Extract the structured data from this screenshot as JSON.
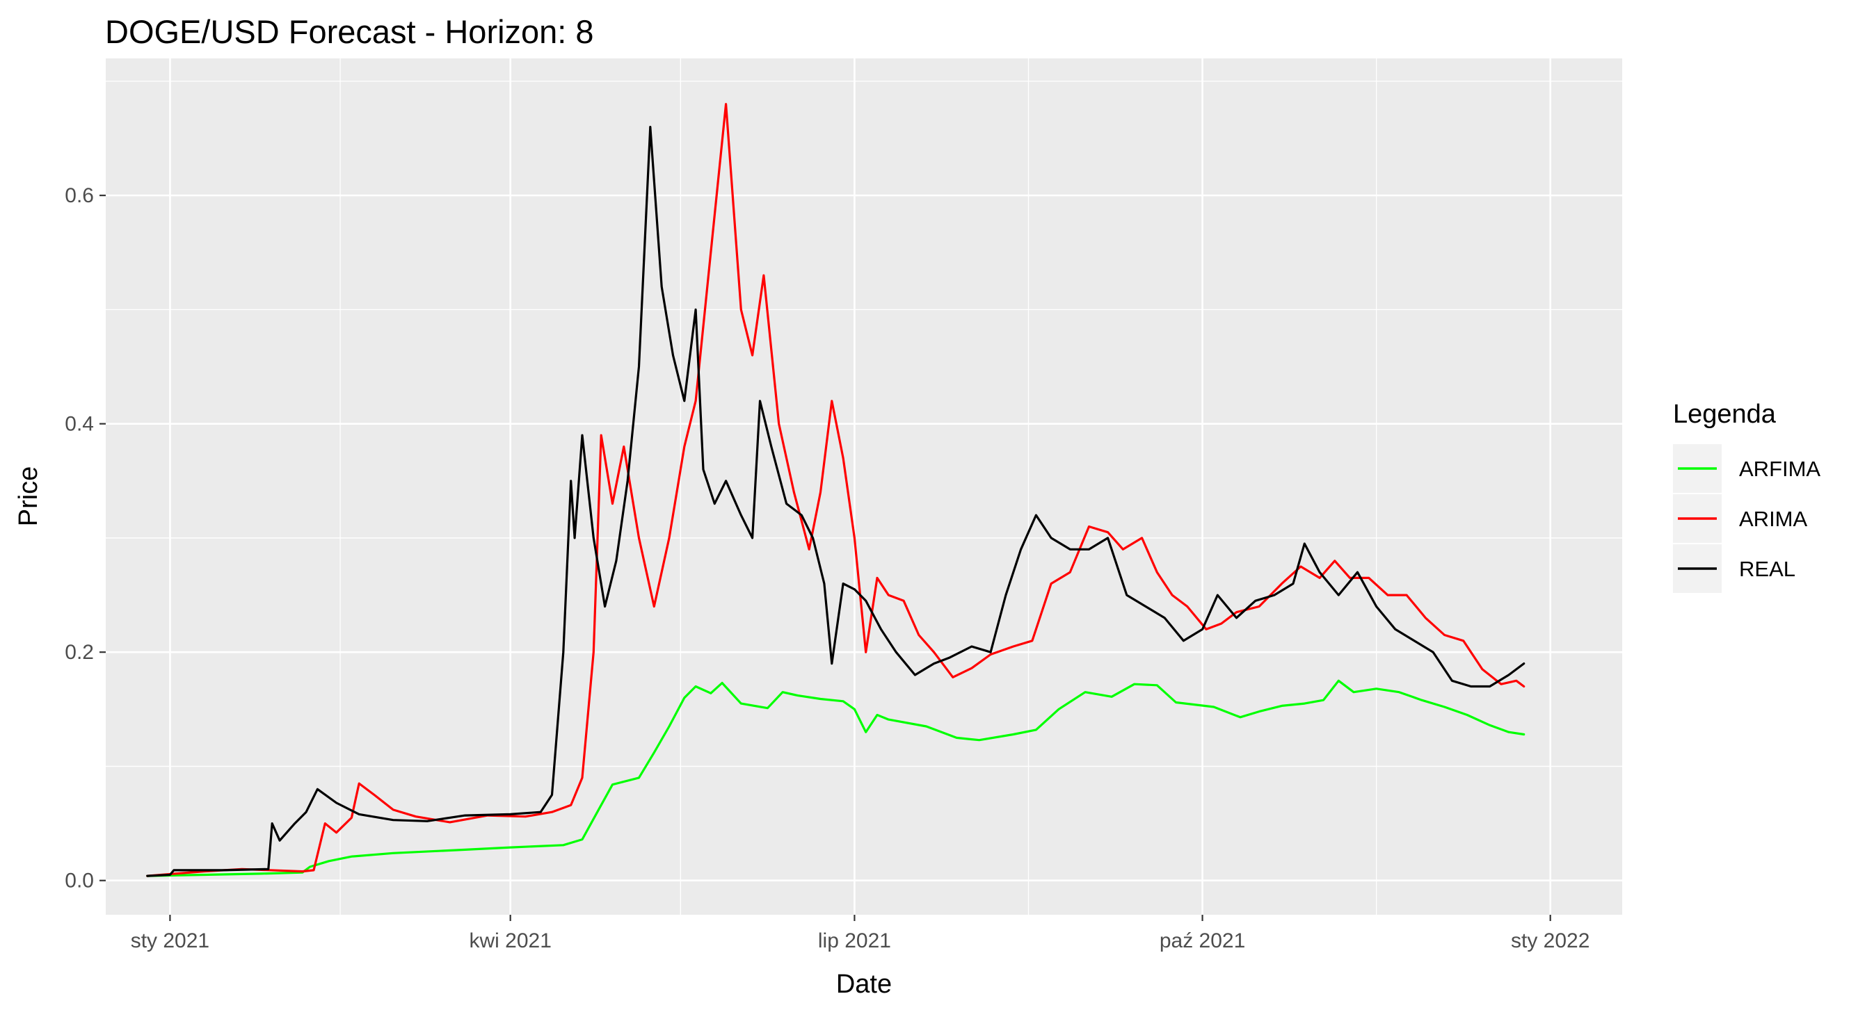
{
  "chart_data": {
    "type": "line",
    "title": "DOGE/USD Forecast - Horizon: 8",
    "xlabel": "Date",
    "ylabel": "Price",
    "xlim": [
      "2020-12-15",
      "2022-01-20"
    ],
    "ylim": [
      -0.03,
      0.72
    ],
    "x_ticks": [
      {
        "date": "2021-01-01",
        "label": "sty 2021"
      },
      {
        "date": "2021-04-01",
        "label": "kwi 2021"
      },
      {
        "date": "2021-07-01",
        "label": "lip 2021"
      },
      {
        "date": "2021-10-01",
        "label": "paź 2021"
      },
      {
        "date": "2022-01-01",
        "label": "sty 2022"
      }
    ],
    "x_minor_ticks": [
      "2021-02-15",
      "2021-05-16",
      "2021-08-16",
      "2021-11-16"
    ],
    "y_ticks": [
      {
        "value": 0.0,
        "label": "0.0"
      },
      {
        "value": 0.2,
        "label": "0.2"
      },
      {
        "value": 0.4,
        "label": "0.4"
      },
      {
        "value": 0.6,
        "label": "0.6"
      }
    ],
    "y_minor_ticks": [
      0.1,
      0.3,
      0.5,
      0.7
    ],
    "grid": true,
    "legend": {
      "title": "Legenda",
      "position": "right"
    },
    "series": [
      {
        "name": "ARFIMA",
        "color": "#00ff00",
        "points": [
          [
            "2020-12-26",
            0.004
          ],
          [
            "2021-01-10",
            0.005
          ],
          [
            "2021-01-25",
            0.006
          ],
          [
            "2021-02-05",
            0.007
          ],
          [
            "2021-02-07",
            0.012
          ],
          [
            "2021-02-12",
            0.017
          ],
          [
            "2021-02-18",
            0.021
          ],
          [
            "2021-03-01",
            0.024
          ],
          [
            "2021-03-20",
            0.027
          ],
          [
            "2021-04-01",
            0.029
          ],
          [
            "2021-04-15",
            0.031
          ],
          [
            "2021-04-20",
            0.036
          ],
          [
            "2021-04-24",
            0.06
          ],
          [
            "2021-04-28",
            0.084
          ],
          [
            "2021-05-05",
            0.09
          ],
          [
            "2021-05-09",
            0.112
          ],
          [
            "2021-05-13",
            0.135
          ],
          [
            "2021-05-17",
            0.16
          ],
          [
            "2021-05-20",
            0.17
          ],
          [
            "2021-05-24",
            0.164
          ],
          [
            "2021-05-27",
            0.173
          ],
          [
            "2021-06-01",
            0.155
          ],
          [
            "2021-06-08",
            0.151
          ],
          [
            "2021-06-12",
            0.165
          ],
          [
            "2021-06-16",
            0.162
          ],
          [
            "2021-06-22",
            0.159
          ],
          [
            "2021-06-28",
            0.157
          ],
          [
            "2021-07-01",
            0.15
          ],
          [
            "2021-07-04",
            0.13
          ],
          [
            "2021-07-07",
            0.145
          ],
          [
            "2021-07-10",
            0.141
          ],
          [
            "2021-07-20",
            0.135
          ],
          [
            "2021-07-28",
            0.125
          ],
          [
            "2021-08-03",
            0.123
          ],
          [
            "2021-08-12",
            0.128
          ],
          [
            "2021-08-18",
            0.132
          ],
          [
            "2021-08-24",
            0.15
          ],
          [
            "2021-08-31",
            0.165
          ],
          [
            "2021-09-07",
            0.161
          ],
          [
            "2021-09-13",
            0.172
          ],
          [
            "2021-09-19",
            0.171
          ],
          [
            "2021-09-24",
            0.156
          ],
          [
            "2021-10-04",
            0.152
          ],
          [
            "2021-10-11",
            0.143
          ],
          [
            "2021-10-16",
            0.148
          ],
          [
            "2021-10-22",
            0.153
          ],
          [
            "2021-10-28",
            0.155
          ],
          [
            "2021-11-02",
            0.158
          ],
          [
            "2021-11-06",
            0.175
          ],
          [
            "2021-11-10",
            0.165
          ],
          [
            "2021-11-16",
            0.168
          ],
          [
            "2021-11-22",
            0.165
          ],
          [
            "2021-11-28",
            0.158
          ],
          [
            "2021-12-04",
            0.152
          ],
          [
            "2021-12-10",
            0.145
          ],
          [
            "2021-12-16",
            0.136
          ],
          [
            "2021-12-21",
            0.13
          ],
          [
            "2021-12-25",
            0.128
          ]
        ]
      },
      {
        "name": "ARIMA",
        "color": "#ff0000",
        "points": [
          [
            "2020-12-26",
            0.004
          ],
          [
            "2021-01-10",
            0.008
          ],
          [
            "2021-01-20",
            0.01
          ],
          [
            "2021-02-05",
            0.008
          ],
          [
            "2021-02-08",
            0.009
          ],
          [
            "2021-02-11",
            0.05
          ],
          [
            "2021-02-14",
            0.042
          ],
          [
            "2021-02-18",
            0.055
          ],
          [
            "2021-02-20",
            0.085
          ],
          [
            "2021-02-24",
            0.075
          ],
          [
            "2021-03-01",
            0.062
          ],
          [
            "2021-03-07",
            0.056
          ],
          [
            "2021-03-16",
            0.051
          ],
          [
            "2021-03-26",
            0.057
          ],
          [
            "2021-04-05",
            0.056
          ],
          [
            "2021-04-12",
            0.06
          ],
          [
            "2021-04-17",
            0.066
          ],
          [
            "2021-04-20",
            0.09
          ],
          [
            "2021-04-23",
            0.2
          ],
          [
            "2021-04-25",
            0.39
          ],
          [
            "2021-04-28",
            0.33
          ],
          [
            "2021-05-01",
            0.38
          ],
          [
            "2021-05-05",
            0.3
          ],
          [
            "2021-05-09",
            0.24
          ],
          [
            "2021-05-13",
            0.3
          ],
          [
            "2021-05-17",
            0.38
          ],
          [
            "2021-05-20",
            0.42
          ],
          [
            "2021-05-24",
            0.55
          ],
          [
            "2021-05-28",
            0.68
          ],
          [
            "2021-06-01",
            0.5
          ],
          [
            "2021-06-04",
            0.46
          ],
          [
            "2021-06-07",
            0.53
          ],
          [
            "2021-06-11",
            0.4
          ],
          [
            "2021-06-15",
            0.34
          ],
          [
            "2021-06-19",
            0.29
          ],
          [
            "2021-06-22",
            0.34
          ],
          [
            "2021-06-25",
            0.42
          ],
          [
            "2021-06-28",
            0.37
          ],
          [
            "2021-07-01",
            0.3
          ],
          [
            "2021-07-04",
            0.2
          ],
          [
            "2021-07-07",
            0.265
          ],
          [
            "2021-07-10",
            0.25
          ],
          [
            "2021-07-14",
            0.245
          ],
          [
            "2021-07-18",
            0.215
          ],
          [
            "2021-07-22",
            0.2
          ],
          [
            "2021-07-27",
            0.178
          ],
          [
            "2021-08-01",
            0.186
          ],
          [
            "2021-08-06",
            0.198
          ],
          [
            "2021-08-12",
            0.205
          ],
          [
            "2021-08-17",
            0.21
          ],
          [
            "2021-08-22",
            0.26
          ],
          [
            "2021-08-27",
            0.27
          ],
          [
            "2021-09-01",
            0.31
          ],
          [
            "2021-09-06",
            0.305
          ],
          [
            "2021-09-10",
            0.29
          ],
          [
            "2021-09-15",
            0.3
          ],
          [
            "2021-09-19",
            0.27
          ],
          [
            "2021-09-23",
            0.25
          ],
          [
            "2021-09-27",
            0.24
          ],
          [
            "2021-10-02",
            0.22
          ],
          [
            "2021-10-06",
            0.225
          ],
          [
            "2021-10-10",
            0.235
          ],
          [
            "2021-10-16",
            0.24
          ],
          [
            "2021-10-22",
            0.26
          ],
          [
            "2021-10-27",
            0.275
          ],
          [
            "2021-11-01",
            0.265
          ],
          [
            "2021-11-05",
            0.28
          ],
          [
            "2021-11-09",
            0.265
          ],
          [
            "2021-11-14",
            0.265
          ],
          [
            "2021-11-19",
            0.25
          ],
          [
            "2021-11-24",
            0.25
          ],
          [
            "2021-11-29",
            0.23
          ],
          [
            "2021-12-04",
            0.215
          ],
          [
            "2021-12-09",
            0.21
          ],
          [
            "2021-12-14",
            0.185
          ],
          [
            "2021-12-19",
            0.172
          ],
          [
            "2021-12-23",
            0.175
          ],
          [
            "2021-12-25",
            0.17
          ]
        ]
      },
      {
        "name": "REAL",
        "color": "#000000",
        "points": [
          [
            "2020-12-26",
            0.004
          ],
          [
            "2021-01-01",
            0.005
          ],
          [
            "2021-01-02",
            0.009
          ],
          [
            "2021-01-15",
            0.009
          ],
          [
            "2021-01-27",
            0.01
          ],
          [
            "2021-01-28",
            0.05
          ],
          [
            "2021-01-30",
            0.035
          ],
          [
            "2021-02-03",
            0.05
          ],
          [
            "2021-02-06",
            0.06
          ],
          [
            "2021-02-09",
            0.08
          ],
          [
            "2021-02-14",
            0.068
          ],
          [
            "2021-02-20",
            0.058
          ],
          [
            "2021-03-01",
            0.053
          ],
          [
            "2021-03-10",
            0.052
          ],
          [
            "2021-03-20",
            0.057
          ],
          [
            "2021-04-01",
            0.058
          ],
          [
            "2021-04-09",
            0.06
          ],
          [
            "2021-04-12",
            0.075
          ],
          [
            "2021-04-15",
            0.2
          ],
          [
            "2021-04-17",
            0.35
          ],
          [
            "2021-04-18",
            0.3
          ],
          [
            "2021-04-20",
            0.39
          ],
          [
            "2021-04-23",
            0.3
          ],
          [
            "2021-04-26",
            0.24
          ],
          [
            "2021-04-29",
            0.28
          ],
          [
            "2021-05-02",
            0.35
          ],
          [
            "2021-05-05",
            0.45
          ],
          [
            "2021-05-08",
            0.66
          ],
          [
            "2021-05-11",
            0.52
          ],
          [
            "2021-05-14",
            0.46
          ],
          [
            "2021-05-17",
            0.42
          ],
          [
            "2021-05-20",
            0.5
          ],
          [
            "2021-05-22",
            0.36
          ],
          [
            "2021-05-25",
            0.33
          ],
          [
            "2021-05-28",
            0.35
          ],
          [
            "2021-06-01",
            0.32
          ],
          [
            "2021-06-04",
            0.3
          ],
          [
            "2021-06-06",
            0.42
          ],
          [
            "2021-06-09",
            0.38
          ],
          [
            "2021-06-13",
            0.33
          ],
          [
            "2021-06-17",
            0.32
          ],
          [
            "2021-06-20",
            0.3
          ],
          [
            "2021-06-23",
            0.26
          ],
          [
            "2021-06-25",
            0.19
          ],
          [
            "2021-06-28",
            0.26
          ],
          [
            "2021-07-01",
            0.255
          ],
          [
            "2021-07-04",
            0.245
          ],
          [
            "2021-07-08",
            0.22
          ],
          [
            "2021-07-12",
            0.2
          ],
          [
            "2021-07-17",
            0.18
          ],
          [
            "2021-07-22",
            0.19
          ],
          [
            "2021-07-26",
            0.195
          ],
          [
            "2021-08-01",
            0.205
          ],
          [
            "2021-08-06",
            0.2
          ],
          [
            "2021-08-10",
            0.25
          ],
          [
            "2021-08-14",
            0.29
          ],
          [
            "2021-08-18",
            0.32
          ],
          [
            "2021-08-22",
            0.3
          ],
          [
            "2021-08-27",
            0.29
          ],
          [
            "2021-09-01",
            0.29
          ],
          [
            "2021-09-06",
            0.3
          ],
          [
            "2021-09-11",
            0.25
          ],
          [
            "2021-09-16",
            0.24
          ],
          [
            "2021-09-21",
            0.23
          ],
          [
            "2021-09-26",
            0.21
          ],
          [
            "2021-10-01",
            0.22
          ],
          [
            "2021-10-05",
            0.25
          ],
          [
            "2021-10-10",
            0.23
          ],
          [
            "2021-10-15",
            0.245
          ],
          [
            "2021-10-20",
            0.25
          ],
          [
            "2021-10-25",
            0.26
          ],
          [
            "2021-10-28",
            0.295
          ],
          [
            "2021-11-01",
            0.27
          ],
          [
            "2021-11-06",
            0.25
          ],
          [
            "2021-11-11",
            0.27
          ],
          [
            "2021-11-16",
            0.24
          ],
          [
            "2021-11-21",
            0.22
          ],
          [
            "2021-11-26",
            0.21
          ],
          [
            "2021-12-01",
            0.2
          ],
          [
            "2021-12-06",
            0.175
          ],
          [
            "2021-12-11",
            0.17
          ],
          [
            "2021-12-16",
            0.17
          ],
          [
            "2021-12-21",
            0.18
          ],
          [
            "2021-12-25",
            0.19
          ]
        ]
      }
    ]
  }
}
